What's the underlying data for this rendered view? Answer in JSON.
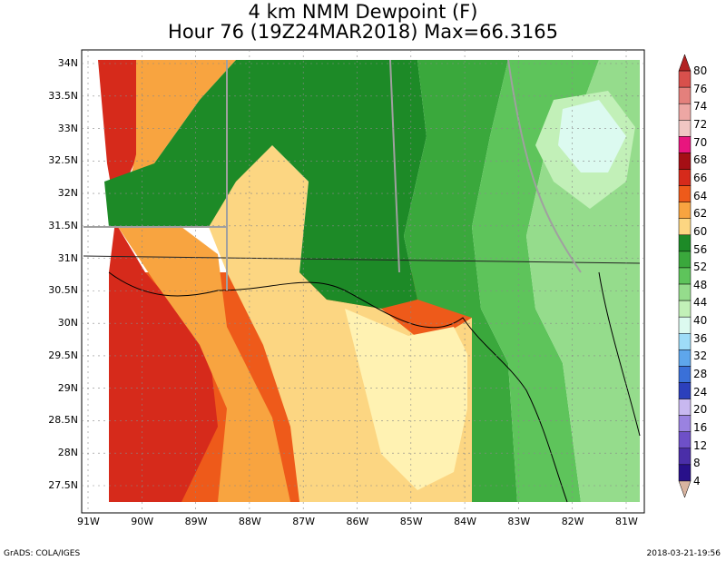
{
  "title": {
    "line1": "4 km NMM Dewpoint (F)",
    "line2": "Hour 76 (19Z24MAR2018) Max=66.3165"
  },
  "axes": {
    "lat_labels": [
      "34N",
      "33.5N",
      "33N",
      "32.5N",
      "32N",
      "31.5N",
      "31N",
      "30.5N",
      "30N",
      "29.5N",
      "29N",
      "28.5N",
      "28N",
      "27.5N"
    ],
    "lon_labels": [
      "91W",
      "90W",
      "89W",
      "88W",
      "87W",
      "86W",
      "85W",
      "84W",
      "83W",
      "82W",
      "81W"
    ]
  },
  "colorbar": {
    "labels": [
      "80",
      "76",
      "74",
      "72",
      "70",
      "68",
      "66",
      "64",
      "62",
      "60",
      "56",
      "52",
      "48",
      "44",
      "40",
      "36",
      "32",
      "28",
      "24",
      "20",
      "16",
      "12",
      "8",
      "4"
    ],
    "colors": [
      "#b22222",
      "#d8504c",
      "#e4807c",
      "#eda7a4",
      "#f0c6c3",
      "#e8157e",
      "#a50f15",
      "#d62a1b",
      "#ee5a1a",
      "#f8a440",
      "#fcd682",
      "#1d8a27",
      "#3aa83c",
      "#5ec45b",
      "#95dc8c",
      "#c2f0b8",
      "#dcfaf0",
      "#9edcf8",
      "#5ea6ec",
      "#3a70d8",
      "#2c40bc",
      "#c8b8f0",
      "#9a82e0",
      "#6e50c8",
      "#4a2ea8",
      "#28108a",
      "#d8b4a0"
    ]
  },
  "regions": {
    "very_warm": "#d62a1b",
    "warm": "#ee5a1a",
    "orange": "#f8a440",
    "light_orange": "#fcd682",
    "pale": "#fff2b2",
    "dark_green": "#1d8a27",
    "green": "#3aa83c",
    "mid_green": "#5ec45b",
    "light_green": "#95dc8c",
    "pale_green": "#c2f0b8",
    "cyan": "#dcfaf0",
    "border_gray": "#a0a0a0"
  },
  "footer": {
    "left": "GrADS: COLA/IGES",
    "right": "2018-03-21-19:56"
  }
}
